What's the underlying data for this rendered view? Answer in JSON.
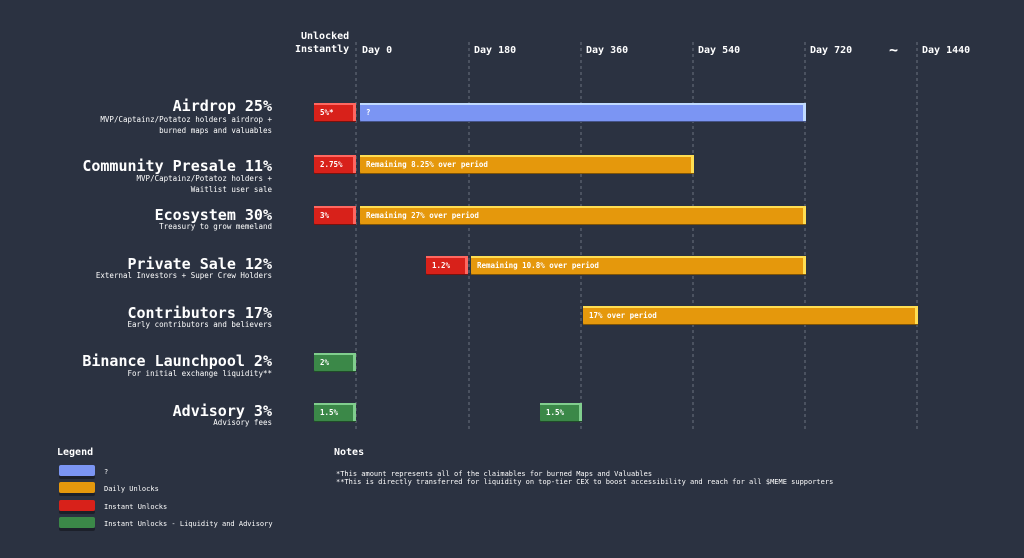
{
  "header": {
    "unlocked_line1": "Unlocked",
    "unlocked_line2": "Instantly",
    "tilde": "~"
  },
  "chart_data": {
    "type": "bar",
    "x_ticks": [
      {
        "day": 0,
        "label": "Day 0"
      },
      {
        "day": 180,
        "label": "Day 180"
      },
      {
        "day": 360,
        "label": "Day 360"
      },
      {
        "day": 540,
        "label": "Day 540"
      },
      {
        "day": 720,
        "label": "Day 720"
      },
      {
        "day": 1440,
        "label": "Day 1440"
      }
    ],
    "rows": [
      {
        "title": "Airdrop 25%",
        "desc": "MVP/Captainz/Potatoz holders airdrop +\nburned maps and valuables",
        "segments": [
          {
            "kind": "instant",
            "start": "instant",
            "label": "5%*"
          },
          {
            "kind": "unknown",
            "start": 0,
            "end": 720,
            "label": "?"
          }
        ]
      },
      {
        "title": "Community Presale 11%",
        "desc": "MVP/Captainz/Potatoz holders +\nWaitlist user sale",
        "segments": [
          {
            "kind": "instant",
            "start": "instant",
            "label": "2.75%"
          },
          {
            "kind": "daily",
            "start": 0,
            "end": 540,
            "label": "Remaining 8.25% over period"
          }
        ]
      },
      {
        "title": "Ecosystem 30%",
        "desc": "Treasury to grow memeland",
        "segments": [
          {
            "kind": "instant",
            "start": "instant",
            "label": "3%"
          },
          {
            "kind": "daily",
            "start": 0,
            "end": 720,
            "label": "Remaining 27% over period"
          }
        ]
      },
      {
        "title": "Private Sale 12%",
        "desc": "External Investors + Super Crew Holders",
        "segments": [
          {
            "kind": "instant",
            "start": 180,
            "label": "1.2%"
          },
          {
            "kind": "daily",
            "start": 180,
            "end": 720,
            "label": "Remaining 10.8% over period"
          }
        ]
      },
      {
        "title": "Contributors 17%",
        "desc": "Early contributors and believers",
        "segments": [
          {
            "kind": "daily",
            "start": 360,
            "end": 1440,
            "label": "17% over period"
          }
        ]
      },
      {
        "title": "Binance Launchpool 2%",
        "desc": "For initial exchange liquidity**",
        "segments": [
          {
            "kind": "liquidity",
            "start": "instant",
            "label": "2%"
          }
        ]
      },
      {
        "title": "Advisory 3%",
        "desc": "Advisory fees",
        "segments": [
          {
            "kind": "liquidity",
            "start": "instant",
            "label": "1.5%"
          },
          {
            "kind": "liquidity",
            "start": 360,
            "label": "1.5%"
          }
        ]
      }
    ]
  },
  "colors": {
    "unknown": "#7b95f3",
    "daily": "#e5980c",
    "instant": "#d8211a",
    "liquidity": "#3b8848",
    "background": "#2b3241"
  },
  "legend": {
    "title": "Legend",
    "items": [
      {
        "kind": "unknown",
        "label": "?"
      },
      {
        "kind": "daily",
        "label": "Daily Unlocks"
      },
      {
        "kind": "instant",
        "label": "Instant Unlocks"
      },
      {
        "kind": "liquidity",
        "label": "Instant Unlocks - Liquidity and Advisory"
      }
    ]
  },
  "notes": {
    "title": "Notes",
    "lines": [
      "*This amount represents all of the claimables for burned Maps and Valuables",
      "**This is directly transferred for liquidity on top-tier CEX to boost accessibility and reach for all $MEME supporters"
    ]
  }
}
